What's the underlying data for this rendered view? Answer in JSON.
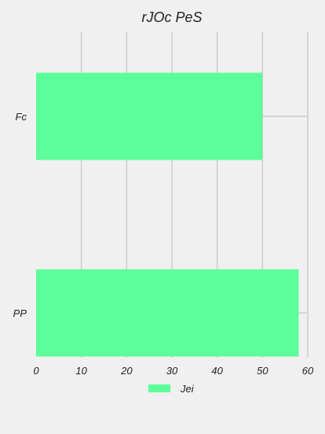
{
  "chart_data": {
    "type": "bar",
    "orientation": "horizontal",
    "title": "rJOc PeS",
    "xlabel": "",
    "ylabel": "",
    "categories": [
      "Fc",
      "PP"
    ],
    "series": [
      {
        "name": "Jei",
        "values": [
          50,
          58
        ],
        "color": "#5cff99"
      }
    ],
    "xlim": [
      0,
      60
    ],
    "xticks": [
      0,
      10,
      20,
      30,
      40,
      50,
      60
    ],
    "grid": "x",
    "grid_color": "#cccccc",
    "background": "#f0f0f0",
    "legend_position": "bottom-center"
  }
}
